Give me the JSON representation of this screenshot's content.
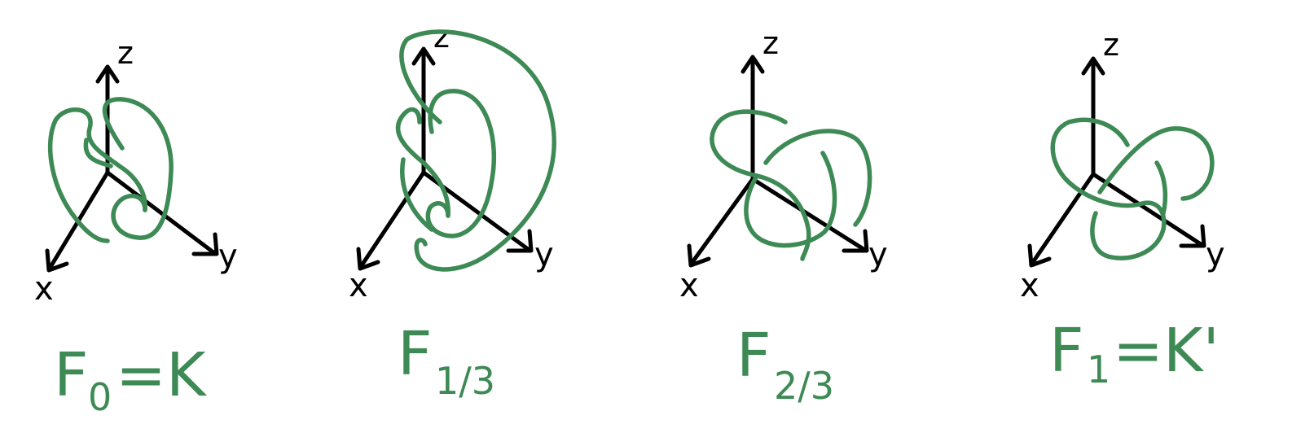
{
  "colors": {
    "knot": "#3d8a55",
    "axes": "#000000"
  },
  "panels": [
    {
      "axes": {
        "x": "x",
        "y": "y",
        "z": "z"
      },
      "caption": {
        "main": "F",
        "sub": "0",
        "rest": "=K"
      }
    },
    {
      "axes": {
        "x": "x",
        "y": "y",
        "z": "z"
      },
      "caption": {
        "main": "F",
        "sub": "1/3",
        "rest": ""
      }
    },
    {
      "axes": {
        "x": "x",
        "y": "y",
        "z": "z"
      },
      "caption": {
        "main": "F",
        "sub": "2/3",
        "rest": ""
      }
    },
    {
      "axes": {
        "x": "x",
        "y": "y",
        "z": "z"
      },
      "caption": {
        "main": "F",
        "sub": "1",
        "rest": "=K'"
      }
    }
  ]
}
